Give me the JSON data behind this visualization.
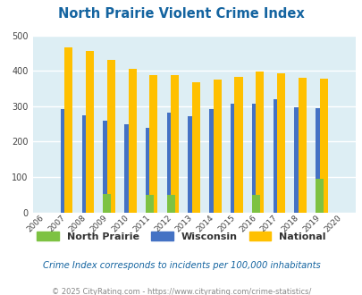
{
  "title": "North Prairie Violent Crime Index",
  "years": [
    2006,
    2007,
    2008,
    2009,
    2010,
    2011,
    2012,
    2013,
    2014,
    2015,
    2016,
    2017,
    2018,
    2019,
    2020
  ],
  "north_prairie": [
    0,
    0,
    0,
    53,
    0,
    50,
    50,
    0,
    0,
    0,
    50,
    0,
    0,
    95,
    0
  ],
  "wisconsin": [
    0,
    293,
    275,
    260,
    250,
    240,
    281,
    272,
    293,
    307,
    307,
    319,
    298,
    295,
    0
  ],
  "national": [
    0,
    467,
    455,
    432,
    405,
    387,
    387,
    368,
    376,
    383,
    397,
    394,
    381,
    379,
    0
  ],
  "color_np": "#7dc242",
  "color_wi": "#4472c4",
  "color_nat": "#ffc000",
  "bg_color": "#ddeef4",
  "ylim": [
    0,
    500
  ],
  "yticks": [
    0,
    100,
    200,
    300,
    400,
    500
  ],
  "bar_width": 0.38,
  "subtitle": "Crime Index corresponds to incidents per 100,000 inhabitants",
  "footer": "© 2025 CityRating.com - https://www.cityrating.com/crime-statistics/",
  "title_color": "#1464a0",
  "subtitle_color": "#1464a0",
  "footer_color": "#888888",
  "legend_labels": [
    "North Prairie",
    "Wisconsin",
    "National"
  ]
}
